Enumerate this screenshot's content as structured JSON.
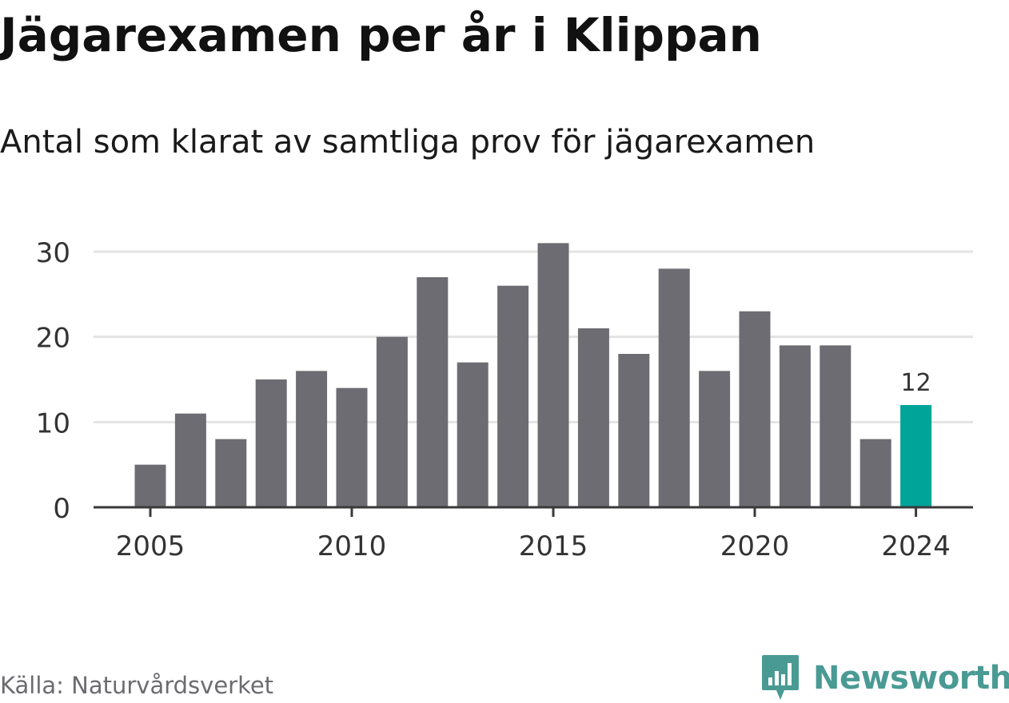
{
  "title": "Jägarexamen per år i Klippan",
  "subtitle": "Antal som klarat av samtliga prov för jägarexamen",
  "source": "Källa: Naturvårdsverket",
  "brand": {
    "name": "Newsworthy",
    "logo_icon": "newsworthy-bar-chart-icon",
    "color": "#4a9a94"
  },
  "colors": {
    "bar": "#6d6c72",
    "highlight": "#00a499",
    "grid": "#e3e3e3",
    "axis": "#3a3a3a",
    "text": "#333333"
  },
  "chart_data": {
    "type": "bar",
    "x": [
      2005,
      2006,
      2007,
      2008,
      2009,
      2010,
      2011,
      2012,
      2013,
      2014,
      2015,
      2016,
      2017,
      2018,
      2019,
      2020,
      2021,
      2022,
      2023,
      2024
    ],
    "values": [
      5,
      11,
      8,
      15,
      16,
      14,
      20,
      27,
      17,
      26,
      31,
      21,
      18,
      28,
      16,
      23,
      19,
      19,
      8,
      12
    ],
    "highlight_index": 19,
    "highlight_label": "12",
    "xticks": [
      2005,
      2010,
      2015,
      2020,
      2024
    ],
    "yticks": [
      0,
      10,
      20,
      30
    ],
    "ylim": [
      0,
      31
    ],
    "grid": true,
    "xlabel": "",
    "ylabel": ""
  }
}
